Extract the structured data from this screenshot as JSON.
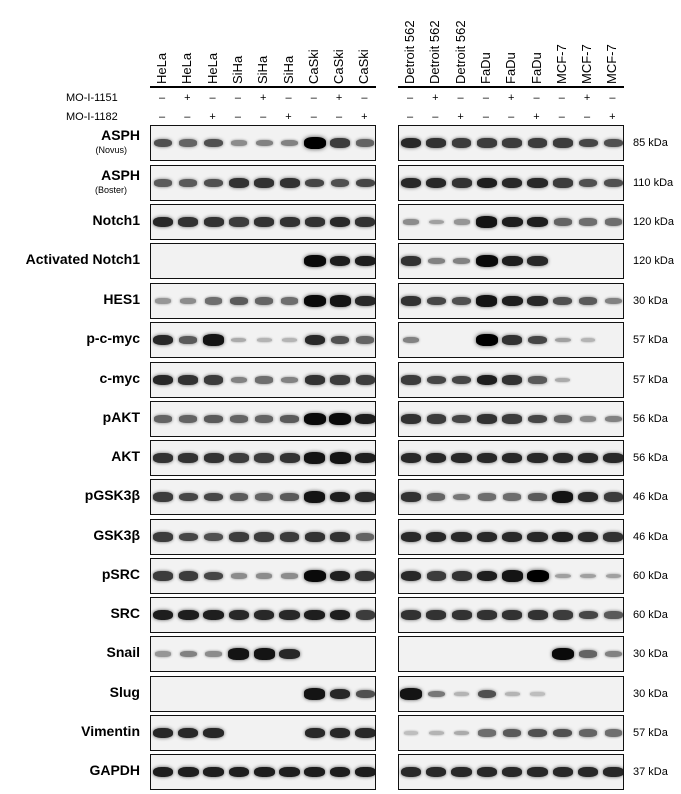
{
  "lanes_left": [
    "HeLa",
    "HeLa",
    "HeLa",
    "SiHa",
    "SiHa",
    "SiHa",
    "CaSki",
    "CaSki",
    "CaSki"
  ],
  "lanes_right": [
    "Detroit 562",
    "Detroit 562",
    "Detroit 562",
    "FaDu",
    "FaDu",
    "FaDu",
    "MCF-7",
    "MCF-7",
    "MCF-7"
  ],
  "treatments": [
    {
      "name": "MO-I-1151",
      "left": [
        "–",
        "+",
        "–",
        "–",
        "+",
        "–",
        "–",
        "+",
        "–"
      ],
      "right": [
        "–",
        "+",
        "–",
        "–",
        "+",
        "–",
        "–",
        "+",
        "–"
      ]
    },
    {
      "name": "MO-I-1182",
      "left": [
        "–",
        "–",
        "+",
        "–",
        "–",
        "+",
        "–",
        "–",
        "+"
      ],
      "right": [
        "–",
        "–",
        "+",
        "–",
        "–",
        "+",
        "–",
        "–",
        "+"
      ]
    }
  ],
  "blots": [
    {
      "label": "ASPH",
      "sub": "(Novus)",
      "kda": "85 kDa",
      "left": [
        0.6,
        0.5,
        0.6,
        0.3,
        0.35,
        0.35,
        1.0,
        0.7,
        0.5
      ],
      "right": [
        0.8,
        0.75,
        0.7,
        0.7,
        0.7,
        0.7,
        0.7,
        0.65,
        0.6
      ]
    },
    {
      "label": "ASPH",
      "sub": "(Boster)",
      "kda": "110 kDa",
      "left": [
        0.55,
        0.55,
        0.6,
        0.75,
        0.75,
        0.75,
        0.65,
        0.6,
        0.65
      ],
      "right": [
        0.8,
        0.8,
        0.75,
        0.85,
        0.8,
        0.8,
        0.7,
        0.6,
        0.6
      ]
    },
    {
      "label": "Notch1",
      "sub": "",
      "kda": "120 kDa",
      "left": [
        0.8,
        0.75,
        0.75,
        0.7,
        0.75,
        0.75,
        0.75,
        0.8,
        0.75
      ],
      "right": [
        0.3,
        0.2,
        0.25,
        0.9,
        0.85,
        0.85,
        0.5,
        0.45,
        0.45
      ]
    },
    {
      "label": "Activated Notch1",
      "sub": "",
      "kda": "120 kDa",
      "left": [
        0,
        0,
        0,
        0,
        0,
        0,
        0.95,
        0.85,
        0.85
      ],
      "right": [
        0.75,
        0.35,
        0.35,
        0.95,
        0.85,
        0.8,
        0,
        0,
        0
      ]
    },
    {
      "label": "HES1",
      "sub": "",
      "kda": "30 kDa",
      "left": [
        0.25,
        0.3,
        0.45,
        0.55,
        0.5,
        0.45,
        0.95,
        0.9,
        0.8
      ],
      "right": [
        0.75,
        0.65,
        0.6,
        0.9,
        0.85,
        0.8,
        0.6,
        0.55,
        0.35
      ]
    },
    {
      "label": "p-c-myc",
      "sub": "",
      "kda": "57 kDa",
      "left": [
        0.8,
        0.55,
        0.9,
        0.15,
        0.1,
        0.1,
        0.8,
        0.6,
        0.5
      ],
      "right": [
        0.35,
        0,
        0,
        1.0,
        0.75,
        0.65,
        0.2,
        0.1,
        0
      ]
    },
    {
      "label": "c-myc",
      "sub": "",
      "kda": "57 kDa",
      "left": [
        0.8,
        0.75,
        0.7,
        0.35,
        0.45,
        0.35,
        0.75,
        0.7,
        0.7
      ],
      "right": [
        0.7,
        0.65,
        0.65,
        0.85,
        0.75,
        0.55,
        0.15,
        0,
        0
      ]
    },
    {
      "label": "pAKT",
      "sub": "",
      "kda": "56 kDa",
      "left": [
        0.5,
        0.5,
        0.55,
        0.5,
        0.5,
        0.55,
        0.95,
        0.95,
        0.85
      ],
      "right": [
        0.75,
        0.7,
        0.65,
        0.75,
        0.7,
        0.65,
        0.5,
        0.3,
        0.35
      ]
    },
    {
      "label": "AKT",
      "sub": "",
      "kda": "56 kDa",
      "left": [
        0.75,
        0.75,
        0.75,
        0.7,
        0.7,
        0.75,
        0.9,
        0.9,
        0.85
      ],
      "right": [
        0.8,
        0.8,
        0.8,
        0.8,
        0.8,
        0.8,
        0.8,
        0.8,
        0.8
      ]
    },
    {
      "label": "pGSK3β",
      "sub": "",
      "kda": "46 kDa",
      "left": [
        0.7,
        0.65,
        0.65,
        0.55,
        0.5,
        0.55,
        0.9,
        0.85,
        0.8
      ],
      "right": [
        0.75,
        0.5,
        0.4,
        0.45,
        0.45,
        0.55,
        0.9,
        0.8,
        0.7
      ]
    },
    {
      "label": "GSK3β",
      "sub": "",
      "kda": "46 kDa",
      "left": [
        0.7,
        0.65,
        0.6,
        0.7,
        0.7,
        0.7,
        0.75,
        0.75,
        0.5
      ],
      "right": [
        0.8,
        0.8,
        0.8,
        0.8,
        0.8,
        0.8,
        0.85,
        0.8,
        0.75
      ]
    },
    {
      "label": "pSRC",
      "sub": "",
      "kda": "60 kDa",
      "left": [
        0.7,
        0.7,
        0.65,
        0.3,
        0.3,
        0.3,
        0.95,
        0.85,
        0.75
      ],
      "right": [
        0.8,
        0.7,
        0.75,
        0.85,
        0.9,
        1.0,
        0.2,
        0.2,
        0.2
      ]
    },
    {
      "label": "SRC",
      "sub": "",
      "kda": "60 kDa",
      "left": [
        0.85,
        0.85,
        0.85,
        0.8,
        0.8,
        0.8,
        0.85,
        0.85,
        0.7
      ],
      "right": [
        0.75,
        0.75,
        0.75,
        0.75,
        0.75,
        0.75,
        0.7,
        0.65,
        0.55
      ]
    },
    {
      "label": "Snail",
      "sub": "",
      "kda": "30 kDa",
      "left": [
        0.25,
        0.35,
        0.3,
        0.9,
        0.9,
        0.8,
        0,
        0,
        0
      ],
      "right": [
        0,
        0,
        0,
        0,
        0,
        0,
        0.95,
        0.5,
        0.35
      ]
    },
    {
      "label": "Slug",
      "sub": "",
      "kda": "30 kDa",
      "left": [
        0,
        0,
        0,
        0,
        0,
        0,
        0.9,
        0.8,
        0.6
      ],
      "right": [
        0.9,
        0.4,
        0.1,
        0.6,
        0.1,
        0.05,
        0,
        0,
        0
      ]
    },
    {
      "label": "Vimentin",
      "sub": "",
      "kda": "57 kDa",
      "left": [
        0.8,
        0.8,
        0.8,
        0,
        0,
        0,
        0.8,
        0.8,
        0.8
      ],
      "right": [
        0.05,
        0.1,
        0.15,
        0.45,
        0.55,
        0.6,
        0.6,
        0.5,
        0.45
      ]
    },
    {
      "label": "GAPDH",
      "sub": "",
      "kda": "37 kDa",
      "left": [
        0.85,
        0.85,
        0.85,
        0.85,
        0.85,
        0.85,
        0.85,
        0.85,
        0.85
      ],
      "right": [
        0.8,
        0.8,
        0.8,
        0.8,
        0.8,
        0.8,
        0.8,
        0.8,
        0.8
      ]
    }
  ]
}
